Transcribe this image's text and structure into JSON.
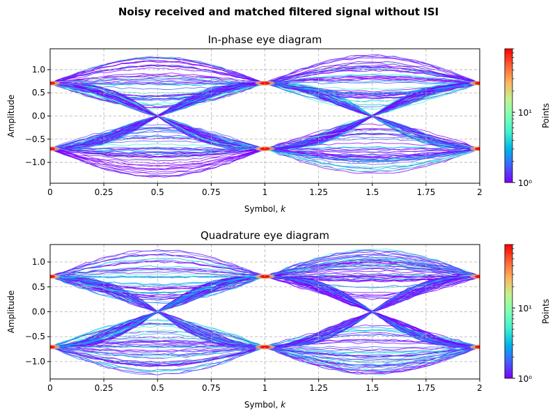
{
  "suptitle": "Noisy received and matched filtered signal without ISI",
  "colormap": [
    "#7f00ff",
    "#3f61fa",
    "#00b4eb",
    "#3ff2cc",
    "#80ffb4",
    "#c2f28f",
    "#ffb360",
    "#ff6134",
    "#ff0000"
  ],
  "chart_data": [
    {
      "type": "heatmap",
      "subtype": "eye-diagram",
      "title": "In-phase eye diagram",
      "xlabel": "Symbol, k",
      "ylabel": "Amplitude",
      "xlim": [
        0,
        2
      ],
      "ylim": [
        -1.45,
        1.45
      ],
      "xticks": [
        0,
        0.25,
        0.5,
        0.75,
        1,
        1.25,
        1.5,
        1.75,
        2
      ],
      "xtick_labels": [
        "0",
        "0.25",
        "0.5",
        "0.75",
        "1",
        "1.25",
        "1.5",
        "1.75",
        "2"
      ],
      "yticks": [
        -1.0,
        -0.5,
        0.0,
        0.5,
        1.0
      ],
      "ytick_labels": [
        "−1.0",
        "−0.5",
        "0.0",
        "0.5",
        "1.0"
      ],
      "levels": [
        -0.707,
        0.707
      ],
      "max_excursion": 1.33,
      "grid": true,
      "colorbar": {
        "label": "Points",
        "scale": "log",
        "range": [
          1,
          80
        ],
        "tick_values": [
          1,
          10
        ],
        "tick_labels": [
          "10⁰",
          "10¹"
        ]
      }
    },
    {
      "type": "heatmap",
      "subtype": "eye-diagram",
      "title": "Quadrature eye diagram",
      "xlabel": "Symbol, k",
      "ylabel": "Amplitude",
      "xlim": [
        0,
        2
      ],
      "ylim": [
        -1.35,
        1.35
      ],
      "xticks": [
        0,
        0.25,
        0.5,
        0.75,
        1,
        1.25,
        1.5,
        1.75,
        2
      ],
      "xtick_labels": [
        "0",
        "0.25",
        "0.5",
        "0.75",
        "1",
        "1.25",
        "1.5",
        "1.75",
        "2"
      ],
      "yticks": [
        -1.0,
        -0.5,
        0.0,
        0.5,
        1.0
      ],
      "ytick_labels": [
        "−1.0",
        "−0.5",
        "0.0",
        "0.5",
        "1.0"
      ],
      "levels": [
        -0.707,
        0.707
      ],
      "max_excursion": 1.27,
      "grid": true,
      "colorbar": {
        "label": "Points",
        "scale": "log",
        "range": [
          1,
          80
        ],
        "tick_values": [
          1,
          10
        ],
        "tick_labels": [
          "10⁰",
          "10¹"
        ]
      }
    }
  ]
}
